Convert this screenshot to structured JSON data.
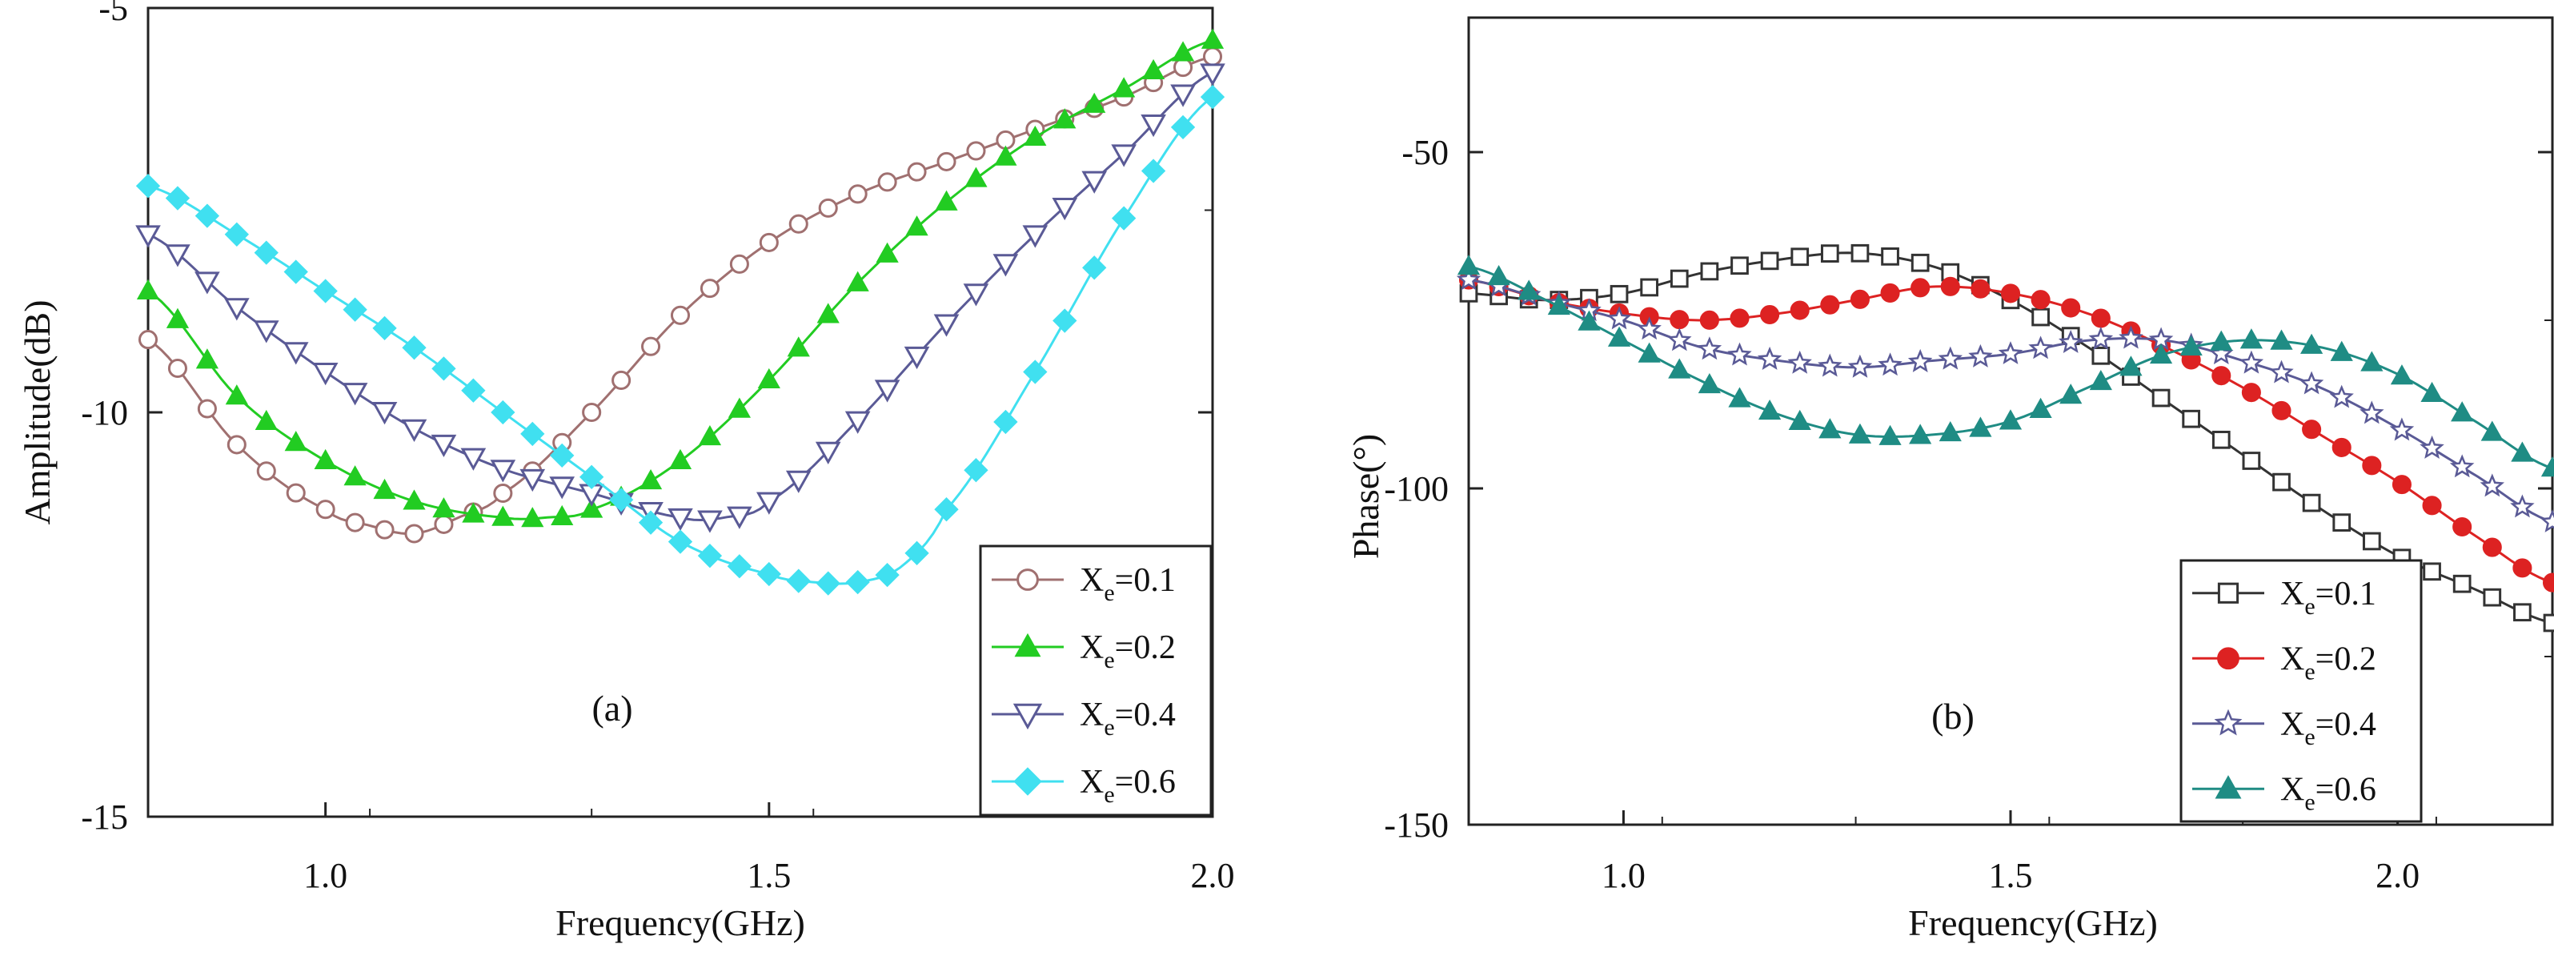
{
  "chart_data": [
    {
      "type": "line",
      "panel_label": "(a)",
      "xlabel": "Frequency(GHz)",
      "ylabel": "Amplitude(dB)",
      "xlim": [
        0.8,
        2.0
      ],
      "ylim": [
        -15,
        -5
      ],
      "xticks": [
        1.0,
        1.5,
        2.0
      ],
      "xtick_labels": [
        "1.0",
        "1.5",
        "2.0"
      ],
      "yticks": [
        -15,
        -10,
        -5
      ],
      "ytick_labels": [
        "-15",
        "-10",
        "-5"
      ],
      "legend_position": "bottom-right",
      "series": [
        {
          "name": "Xe=0.1",
          "label_main": "X",
          "label_sub": "e",
          "label_rest": "=0.1",
          "color": "#a07070",
          "marker": "circle-open",
          "x": [
            0.8,
            0.9,
            1.0,
            1.05,
            1.1,
            1.15,
            1.2,
            1.3,
            1.4,
            1.5,
            1.6,
            1.7,
            1.8,
            1.9,
            2.0
          ],
          "y": [
            -9.1,
            -10.4,
            -11.2,
            -11.4,
            -11.5,
            -11.3,
            -11.0,
            -10.0,
            -8.8,
            -7.9,
            -7.3,
            -6.9,
            -6.5,
            -6.1,
            -5.6
          ]
        },
        {
          "name": "Xe=0.2",
          "label_main": "X",
          "label_sub": "e",
          "label_rest": "=0.2",
          "color": "#22cc22",
          "marker": "triangle-up-filled",
          "x": [
            0.8,
            0.9,
            1.0,
            1.1,
            1.2,
            1.25,
            1.3,
            1.4,
            1.5,
            1.6,
            1.7,
            1.8,
            1.9,
            2.0
          ],
          "y": [
            -8.5,
            -9.8,
            -10.6,
            -11.1,
            -11.3,
            -11.3,
            -11.2,
            -10.6,
            -9.6,
            -8.4,
            -7.4,
            -6.6,
            -6.0,
            -5.4
          ]
        },
        {
          "name": "Xe=0.4",
          "label_main": "X",
          "label_sub": "e",
          "label_rest": "=0.4",
          "color": "#5a5a96",
          "marker": "triangle-down-open",
          "x": [
            0.8,
            0.9,
            1.0,
            1.1,
            1.2,
            1.3,
            1.4,
            1.45,
            1.5,
            1.6,
            1.7,
            1.8,
            1.9,
            2.0
          ],
          "y": [
            -7.8,
            -8.7,
            -9.5,
            -10.2,
            -10.7,
            -11.0,
            -11.3,
            -11.3,
            -11.1,
            -10.1,
            -8.9,
            -7.8,
            -6.8,
            -5.8
          ]
        },
        {
          "name": "Xe=0.6",
          "label_main": "X",
          "label_sub": "e",
          "label_rest": "=0.6",
          "color": "#40e0f0",
          "marker": "diamond-filled",
          "x": [
            0.8,
            0.9,
            1.0,
            1.1,
            1.2,
            1.3,
            1.4,
            1.5,
            1.55,
            1.6,
            1.65,
            1.7,
            1.8,
            1.9,
            2.0
          ],
          "y": [
            -7.2,
            -7.8,
            -8.5,
            -9.2,
            -10.0,
            -10.8,
            -11.6,
            -12.0,
            -12.1,
            -12.1,
            -11.9,
            -11.2,
            -9.5,
            -7.6,
            -6.1
          ]
        }
      ]
    },
    {
      "type": "line",
      "panel_label": "(b)",
      "xlabel": "Frequency(GHz)",
      "ylabel": "Phase(°)",
      "xlim": [
        0.8,
        2.2
      ],
      "ylim": [
        -150,
        -30
      ],
      "xticks": [
        1.0,
        1.5,
        2.0
      ],
      "xtick_labels": [
        "1.0",
        "1.5",
        "2.0"
      ],
      "yticks": [
        -150,
        -100,
        -50
      ],
      "ytick_labels": [
        "-150",
        "-100",
        "-50"
      ],
      "legend_position": "bottom-right",
      "series": [
        {
          "name": "Xe=0.1",
          "label_main": "X",
          "label_sub": "e",
          "label_rest": "=0.1",
          "color": "#333333",
          "marker": "square-open",
          "x": [
            0.8,
            0.9,
            1.0,
            1.1,
            1.2,
            1.3,
            1.4,
            1.5,
            1.6,
            1.7,
            1.8,
            1.9,
            2.0,
            2.1,
            2.2
          ],
          "y": [
            -71,
            -72,
            -71,
            -68,
            -66,
            -65,
            -67,
            -72,
            -79,
            -87,
            -95,
            -103,
            -110,
            -115,
            -120
          ]
        },
        {
          "name": "Xe=0.2",
          "label_main": "X",
          "label_sub": "e",
          "label_rest": "=0.2",
          "color": "#dd2222",
          "marker": "circle-filled",
          "x": [
            0.8,
            0.9,
            1.0,
            1.1,
            1.2,
            1.3,
            1.4,
            1.5,
            1.6,
            1.7,
            1.8,
            1.9,
            2.0,
            2.1,
            2.2
          ],
          "y": [
            -69,
            -72,
            -74,
            -75,
            -74,
            -72,
            -70,
            -71,
            -74,
            -79,
            -85,
            -92,
            -99,
            -107,
            -114
          ]
        },
        {
          "name": "Xe=0.4",
          "label_main": "X",
          "label_sub": "e",
          "label_rest": "=0.4",
          "color": "#5a5a96",
          "marker": "star-open",
          "x": [
            0.8,
            0.9,
            1.0,
            1.1,
            1.2,
            1.3,
            1.4,
            1.5,
            1.6,
            1.7,
            1.8,
            1.9,
            2.0,
            2.1,
            2.2
          ],
          "y": [
            -69,
            -72,
            -75,
            -79,
            -81,
            -82,
            -81,
            -80,
            -78,
            -78,
            -81,
            -85,
            -91,
            -98,
            -105
          ]
        },
        {
          "name": "Xe=0.6",
          "label_main": "X",
          "label_sub": "e",
          "label_rest": "=0.6",
          "color": "#1f8c84",
          "marker": "triangle-up-filled",
          "x": [
            0.8,
            0.9,
            1.0,
            1.1,
            1.2,
            1.3,
            1.4,
            1.5,
            1.6,
            1.7,
            1.8,
            1.9,
            2.0,
            2.1,
            2.2
          ],
          "y": [
            -67,
            -72,
            -78,
            -84,
            -89,
            -92,
            -92,
            -90,
            -85,
            -80,
            -78,
            -79,
            -83,
            -90,
            -97
          ]
        }
      ]
    }
  ]
}
